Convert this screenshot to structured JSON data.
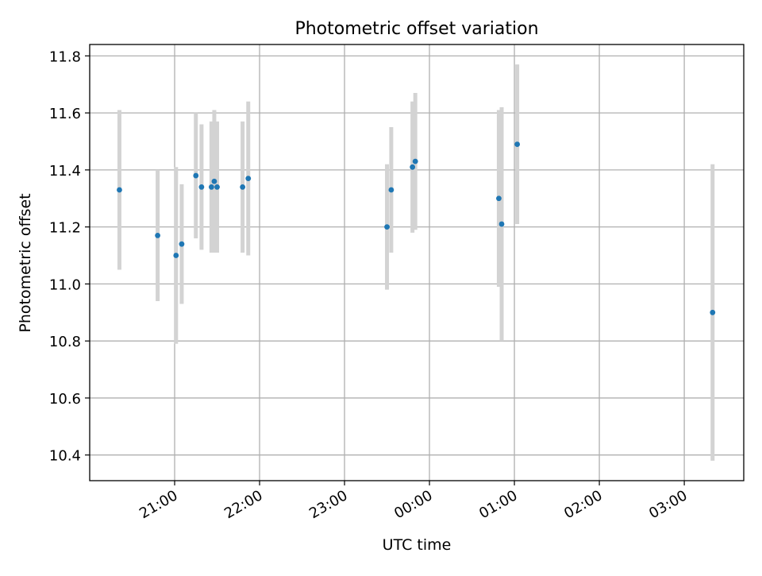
{
  "chart_data": {
    "type": "scatter",
    "title": "Photometric offset variation",
    "xlabel": "UTC time",
    "ylabel": "Photometric offset",
    "x_ticks": [
      "21:00",
      "22:00",
      "23:00",
      "00:00",
      "01:00",
      "02:00",
      "03:00"
    ],
    "x_tick_hours": [
      21,
      22,
      23,
      24,
      25,
      26,
      27
    ],
    "xlim_hours": [
      20.0,
      27.7
    ],
    "ylim": [
      10.31,
      11.84
    ],
    "y_ticks": [
      "10.4",
      "10.6",
      "10.8",
      "11.0",
      "11.2",
      "11.4",
      "11.6",
      "11.8"
    ],
    "y_tick_values": [
      10.4,
      10.6,
      10.8,
      11.0,
      11.2,
      11.4,
      11.6,
      11.8
    ],
    "grid": true,
    "colors": {
      "point": "#1f77b4",
      "errorbar": "#d3d3d3",
      "grid": "#b0b0b0"
    },
    "points": [
      {
        "time": "20:21",
        "y": 11.33,
        "err": 0.28
      },
      {
        "time": "20:48",
        "y": 11.17,
        "err": 0.23
      },
      {
        "time": "21:01",
        "y": 11.1,
        "err": 0.31
      },
      {
        "time": "21:05",
        "y": 11.14,
        "err": 0.21
      },
      {
        "time": "21:15",
        "y": 11.38,
        "err": 0.22
      },
      {
        "time": "21:19",
        "y": 11.34,
        "err": 0.22
      },
      {
        "time": "21:26",
        "y": 11.34,
        "err": 0.23
      },
      {
        "time": "21:28",
        "y": 11.36,
        "err": 0.25
      },
      {
        "time": "21:30",
        "y": 11.34,
        "err": 0.23
      },
      {
        "time": "21:48",
        "y": 11.34,
        "err": 0.23
      },
      {
        "time": "21:52",
        "y": 11.37,
        "err": 0.27
      },
      {
        "time": "23:30",
        "y": 11.2,
        "err": 0.22
      },
      {
        "time": "23:33",
        "y": 11.33,
        "err": 0.22
      },
      {
        "time": "23:48",
        "y": 11.41,
        "err": 0.23
      },
      {
        "time": "23:50",
        "y": 11.43,
        "err": 0.24
      },
      {
        "time": "00:49",
        "y": 11.3,
        "err": 0.31
      },
      {
        "time": "00:51",
        "y": 11.21,
        "err": 0.41
      },
      {
        "time": "01:02",
        "y": 11.49,
        "err": 0.28
      },
      {
        "time": "03:20",
        "y": 10.9,
        "err": 0.52
      }
    ]
  }
}
